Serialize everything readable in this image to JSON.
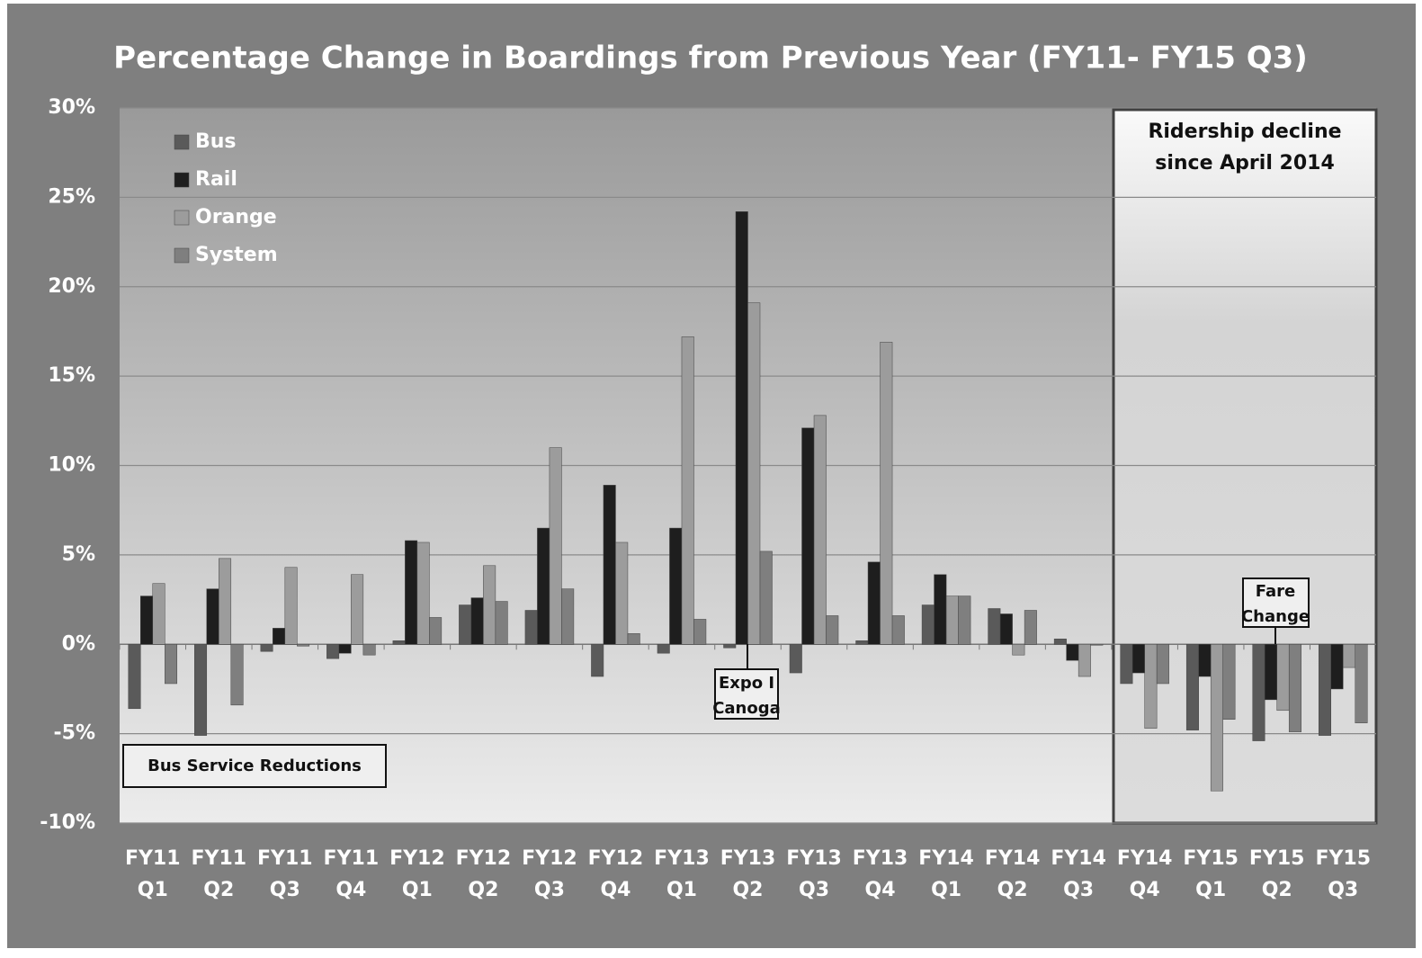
{
  "chart_data": {
    "type": "bar",
    "title": "Percentage Change in Boardings from Previous Year (FY11- FY15 Q3)",
    "categories": [
      [
        "FY11",
        "Q1"
      ],
      [
        "FY11",
        "Q2"
      ],
      [
        "FY11",
        "Q3"
      ],
      [
        "FY11",
        "Q4"
      ],
      [
        "FY12",
        "Q1"
      ],
      [
        "FY12",
        "Q2"
      ],
      [
        "FY12",
        "Q3"
      ],
      [
        "FY12",
        "Q4"
      ],
      [
        "FY13",
        "Q1"
      ],
      [
        "FY13",
        "Q2"
      ],
      [
        "FY13",
        "Q3"
      ],
      [
        "FY13",
        "Q4"
      ],
      [
        "FY14",
        "Q1"
      ],
      [
        "FY14",
        "Q2"
      ],
      [
        "FY14",
        "Q3"
      ],
      [
        "FY14",
        "Q4"
      ],
      [
        "FY15",
        "Q1"
      ],
      [
        "FY15",
        "Q2"
      ],
      [
        "FY15",
        "Q3"
      ]
    ],
    "series": [
      {
        "name": "Bus",
        "color": "#5a5a5a",
        "values": [
          -3.6,
          -5.1,
          -0.4,
          -0.8,
          0.2,
          2.2,
          1.9,
          -1.8,
          -0.5,
          -0.2,
          -1.6,
          0.2,
          2.2,
          2.0,
          0.3,
          -2.2,
          -4.8,
          -5.4,
          -5.1
        ]
      },
      {
        "name": "Rail",
        "color": "#1e1e1e",
        "values": [
          2.7,
          3.1,
          0.9,
          -0.5,
          5.8,
          2.6,
          6.5,
          8.9,
          6.5,
          24.2,
          12.1,
          4.6,
          3.9,
          1.7,
          -0.9,
          -1.6,
          -1.8,
          -3.1,
          -2.5
        ]
      },
      {
        "name": "Orange",
        "color": "#9c9c9c",
        "values": [
          3.4,
          4.8,
          4.3,
          3.9,
          5.7,
          4.4,
          11.0,
          5.7,
          17.2,
          19.1,
          12.8,
          16.9,
          2.7,
          -0.6,
          -1.8,
          -4.7,
          -8.2,
          -3.7,
          -1.3
        ]
      },
      {
        "name": "System",
        "color": "#7f7f7f",
        "values": [
          -2.2,
          -3.4,
          -0.1,
          -0.6,
          1.5,
          2.4,
          3.1,
          0.6,
          1.4,
          5.2,
          1.6,
          1.6,
          2.7,
          1.9,
          -0.05,
          -2.2,
          -4.2,
          -4.9,
          -4.4
        ]
      }
    ],
    "ylim": [
      -10,
      30
    ],
    "yticks": [
      {
        "value": -10,
        "label": "-10%"
      },
      {
        "value": -5,
        "label": "-5%"
      },
      {
        "value": 0,
        "label": "0%"
      },
      {
        "value": 5,
        "label": "5%"
      },
      {
        "value": 10,
        "label": "10%"
      },
      {
        "value": 15,
        "label": "15%"
      },
      {
        "value": 20,
        "label": "20%"
      },
      {
        "value": 25,
        "label": "25%"
      },
      {
        "value": 30,
        "label": "30%"
      }
    ],
    "grid": true,
    "legend": "upper-left",
    "annotations": [
      {
        "text": [
          "Ridership decline",
          "since April 2014"
        ]
      },
      {
        "text": [
          "Bus Service Reductions"
        ]
      },
      {
        "text": [
          "Expo I",
          "Canoga"
        ]
      },
      {
        "text": [
          "Fare",
          "Change"
        ]
      }
    ]
  }
}
